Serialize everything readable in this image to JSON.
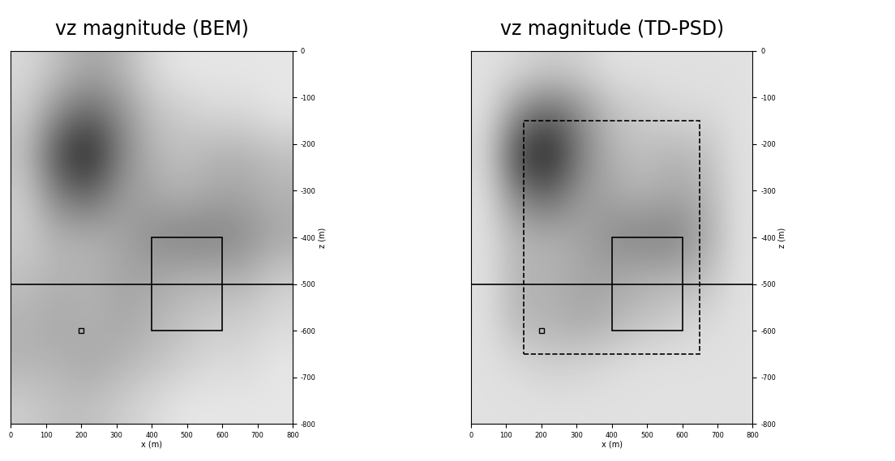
{
  "chart_data": [
    {
      "type": "heatmap",
      "title": "vz magnitude (BEM)",
      "x_label": "x (m)",
      "y_label": "z (m)",
      "xlim": [
        0,
        800
      ],
      "ylim": [
        -800,
        0
      ],
      "xticks": [
        0,
        100,
        200,
        300,
        400,
        500,
        600,
        700,
        800
      ],
      "yticks": [
        0,
        -100,
        -200,
        -300,
        -400,
        -500,
        -600,
        -700,
        -800
      ],
      "cell_range": [
        0,
        1
      ],
      "cells": [
        [
          0.15,
          0.25,
          0.35,
          0.3,
          0.15,
          0.1,
          0.1,
          0.1,
          0.1
        ],
        [
          0.2,
          0.45,
          0.6,
          0.45,
          0.25,
          0.2,
          0.15,
          0.15,
          0.1
        ],
        [
          0.25,
          0.7,
          0.9,
          0.5,
          0.3,
          0.25,
          0.3,
          0.3,
          0.25
        ],
        [
          0.2,
          0.5,
          0.6,
          0.4,
          0.35,
          0.3,
          0.35,
          0.35,
          0.3
        ],
        [
          0.2,
          0.3,
          0.3,
          0.35,
          0.45,
          0.5,
          0.5,
          0.45,
          0.35
        ],
        [
          0.25,
          0.3,
          0.3,
          0.35,
          0.35,
          0.3,
          0.3,
          0.3,
          0.2
        ],
        [
          0.3,
          0.35,
          0.3,
          0.35,
          0.3,
          0.25,
          0.2,
          0.2,
          0.15
        ],
        [
          0.3,
          0.3,
          0.35,
          0.3,
          0.25,
          0.2,
          0.15,
          0.15,
          0.1
        ],
        [
          0.2,
          0.25,
          0.25,
          0.2,
          0.15,
          0.1,
          0.1,
          0.1,
          0.1
        ]
      ],
      "horizontal_line": -500,
      "receiver": [
        200,
        -600
      ],
      "boxes": [
        {
          "x": [
            400,
            600
          ],
          "z": [
            -600,
            -400
          ],
          "line_style": "solid"
        }
      ]
    },
    {
      "type": "heatmap",
      "title": "vz magnitude (TD-PSD)",
      "x_label": "x (m)",
      "y_label": "z (m)",
      "xlim": [
        0,
        800
      ],
      "ylim": [
        -800,
        0
      ],
      "xticks": [
        0,
        100,
        200,
        300,
        400,
        500,
        600,
        700,
        800
      ],
      "yticks": [
        0,
        -100,
        -200,
        -300,
        -400,
        -500,
        -600,
        -700,
        -800
      ],
      "cell_range": [
        0,
        1
      ],
      "cells": [
        [
          0.12,
          0.15,
          0.2,
          0.18,
          0.12,
          0.12,
          0.12,
          0.12,
          0.12
        ],
        [
          0.12,
          0.45,
          0.6,
          0.45,
          0.25,
          0.2,
          0.15,
          0.15,
          0.12
        ],
        [
          0.15,
          0.75,
          0.9,
          0.5,
          0.3,
          0.25,
          0.3,
          0.25,
          0.12
        ],
        [
          0.12,
          0.5,
          0.6,
          0.4,
          0.35,
          0.3,
          0.35,
          0.3,
          0.12
        ],
        [
          0.12,
          0.3,
          0.3,
          0.35,
          0.45,
          0.5,
          0.5,
          0.35,
          0.12
        ],
        [
          0.12,
          0.3,
          0.3,
          0.35,
          0.35,
          0.3,
          0.3,
          0.25,
          0.12
        ],
        [
          0.12,
          0.3,
          0.3,
          0.35,
          0.3,
          0.25,
          0.2,
          0.15,
          0.12
        ],
        [
          0.12,
          0.15,
          0.2,
          0.18,
          0.15,
          0.12,
          0.12,
          0.12,
          0.12
        ],
        [
          0.12,
          0.12,
          0.12,
          0.12,
          0.12,
          0.12,
          0.12,
          0.12,
          0.12
        ]
      ],
      "horizontal_line": -500,
      "receiver": [
        200,
        -600
      ],
      "boxes": [
        {
          "x": [
            400,
            600
          ],
          "z": [
            -600,
            -400
          ],
          "line_style": "solid"
        },
        {
          "x": [
            150,
            650
          ],
          "z": [
            -650,
            -150
          ],
          "line_style": "dashed"
        }
      ]
    }
  ]
}
